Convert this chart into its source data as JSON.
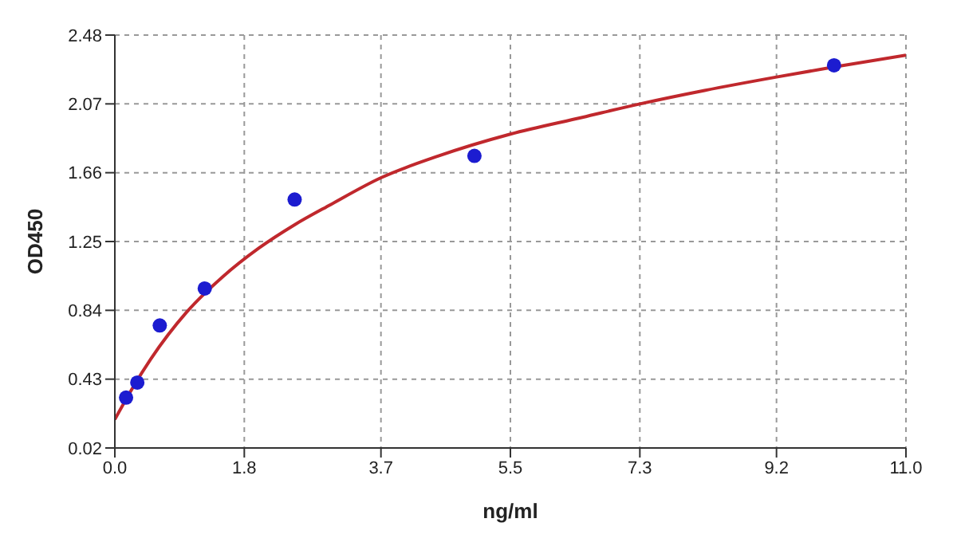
{
  "chart_data": {
    "type": "scatter",
    "xlabel": "ng/ml",
    "ylabel": "OD450",
    "xlim": [
      0,
      11
    ],
    "xticks": [
      {
        "value": 0,
        "label": "0.0"
      },
      1.8,
      3.7,
      5.5,
      7.3,
      9.2,
      {
        "value": 11,
        "label": "11.0"
      }
    ],
    "ylim": [
      0.02,
      2.48
    ],
    "yticks": [
      0.02,
      0.43,
      0.84,
      1.25,
      1.66,
      2.07,
      2.48
    ],
    "grid": true,
    "marker": "circle",
    "series": [
      {
        "color": "#1c1cd0",
        "x": [
          0.156,
          0.3125,
          0.625,
          1.25,
          2.5,
          5,
          10
        ],
        "values": [
          0.32,
          0.41,
          0.75,
          0.97,
          1.5,
          1.76,
          2.3
        ]
      },
      {
        "type": "line",
        "color": "#c0282d",
        "marker": "none",
        "line_style": "solid",
        "x": [
          0,
          0.25,
          0.5,
          1,
          1.5,
          2,
          2.5,
          3,
          3.7,
          4.5,
          5.5,
          6.5,
          7.3,
          8.2,
          9.2,
          10,
          11
        ],
        "values": [
          0.19,
          0.38,
          0.55,
          0.83,
          1.04,
          1.21,
          1.35,
          1.47,
          1.63,
          1.76,
          1.89,
          1.99,
          2.07,
          2.15,
          2.23,
          2.29,
          2.36
        ]
      }
    ]
  }
}
